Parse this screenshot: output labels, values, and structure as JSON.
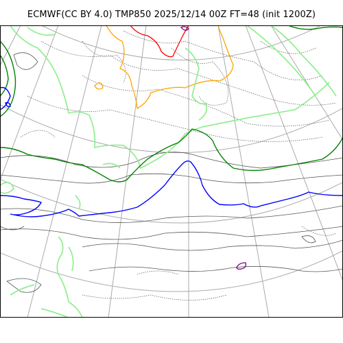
{
  "title": "ECMWF(CC BY 4.0) TMP850 2025/12/14 00Z FT=48 (init 1200Z)",
  "colors": {
    "graticule": "#aaaaaa",
    "coastline": "#555555",
    "dotted_contour": "#555555",
    "isotherm_orange": "#ffa500",
    "isotherm_red": "#ff0000",
    "isotherm_lightgreen": "#90ee90",
    "isotherm_green": "#008000",
    "isotherm_blue": "#0000ff",
    "isotherm_purple": "#800080",
    "frame": "#000000"
  }
}
